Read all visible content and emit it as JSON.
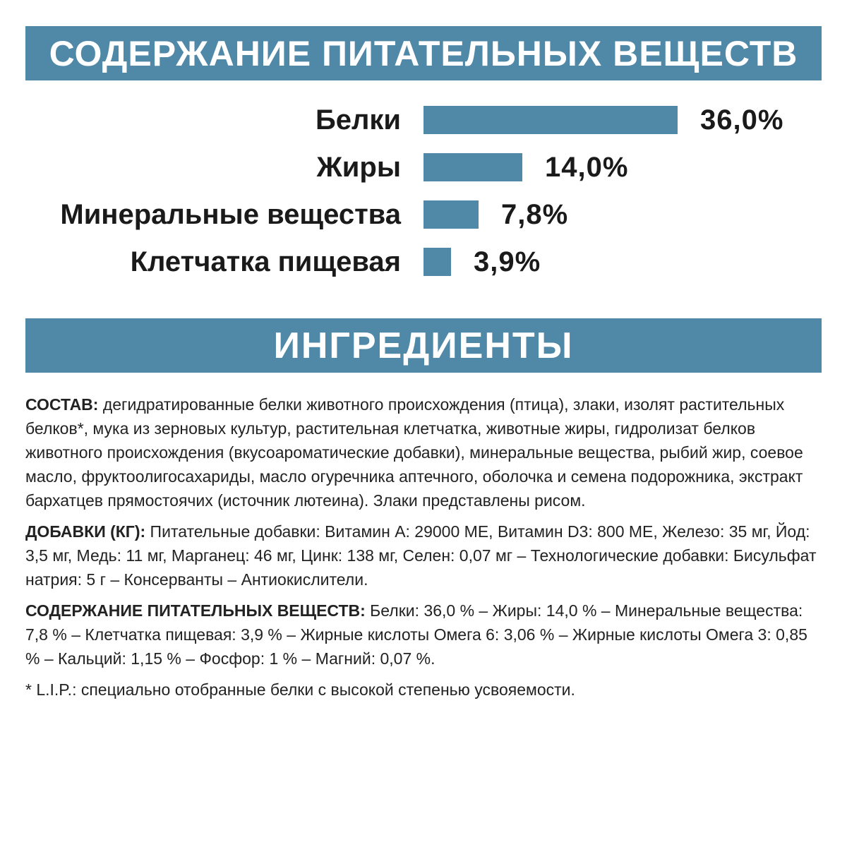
{
  "header": {
    "nutrients_title": "СОДЕРЖАНИЕ ПИТАТЕЛЬНЫХ ВЕЩЕСТВ",
    "ingredients_title": "ИНГРЕДИЕНТЫ"
  },
  "colors": {
    "accent": "#5088a8",
    "text": "#1a1a1a",
    "background": "#ffffff"
  },
  "chart_data": {
    "type": "bar",
    "orientation": "horizontal",
    "title": "СОДЕРЖАНИЕ ПИТАТЕЛЬНЫХ ВЕЩЕСТВ",
    "categories": [
      "Белки",
      "Жиры",
      "Минеральные вещества",
      "Клетчатка пищевая"
    ],
    "values": [
      36.0,
      14.0,
      7.8,
      3.9
    ],
    "value_labels": [
      "36,0%",
      "14,0%",
      "7,8%",
      "3,9%"
    ],
    "unit": "%",
    "grid": false,
    "legend": "none"
  },
  "ingredients": {
    "composition": {
      "label": "СОСТАВ:",
      "text": " дегидратированные белки животного происхождения (птица), злаки, изолят растительных белков*, мука из зерновых культур, растительная клетчатка, животные жиры, гидролизат белков животного происхождения (вкусоароматические добавки), минеральные вещества, рыбий жир, соевое масло, фруктоолигосахариды, масло огуречника аптечного, оболочка и семена подорожника, экстракт бархатцев прямостоячих (источник лютеина). Злаки представлены рисом."
    },
    "additives": {
      "label": "ДОБАВКИ (КГ):",
      "text": " Питательные добавки: Витамин А: 29000 МЕ, Витамин D3: 800 МЕ, Железо: 35 мг, Йод: 3,5 мг, Медь: 11 мг, Марганец: 46 мг, Цинк: 138 мг, Селен: 0,07 мг – Технологические добавки: Бисульфат натрия: 5 г – Консерванты – Антиокислители."
    },
    "nutrients": {
      "label": "СОДЕРЖАНИЕ ПИТАТЕЛЬНЫХ ВЕЩЕСТВ:",
      "text": " Белки: 36,0 % – Жиры: 14,0 % – Минеральные вещества: 7,8 % – Клетчатка пищевая: 3,9 % – Жирные кислоты Омега 6: 3,06 % – Жирные кислоты Омега 3: 0,85 % – Кальций: 1,15 % – Фосфор: 1 % – Магний: 0,07 %."
    },
    "footnote": "* L.I.P.: специально отобранные белки с высокой степенью усвояемости."
  }
}
